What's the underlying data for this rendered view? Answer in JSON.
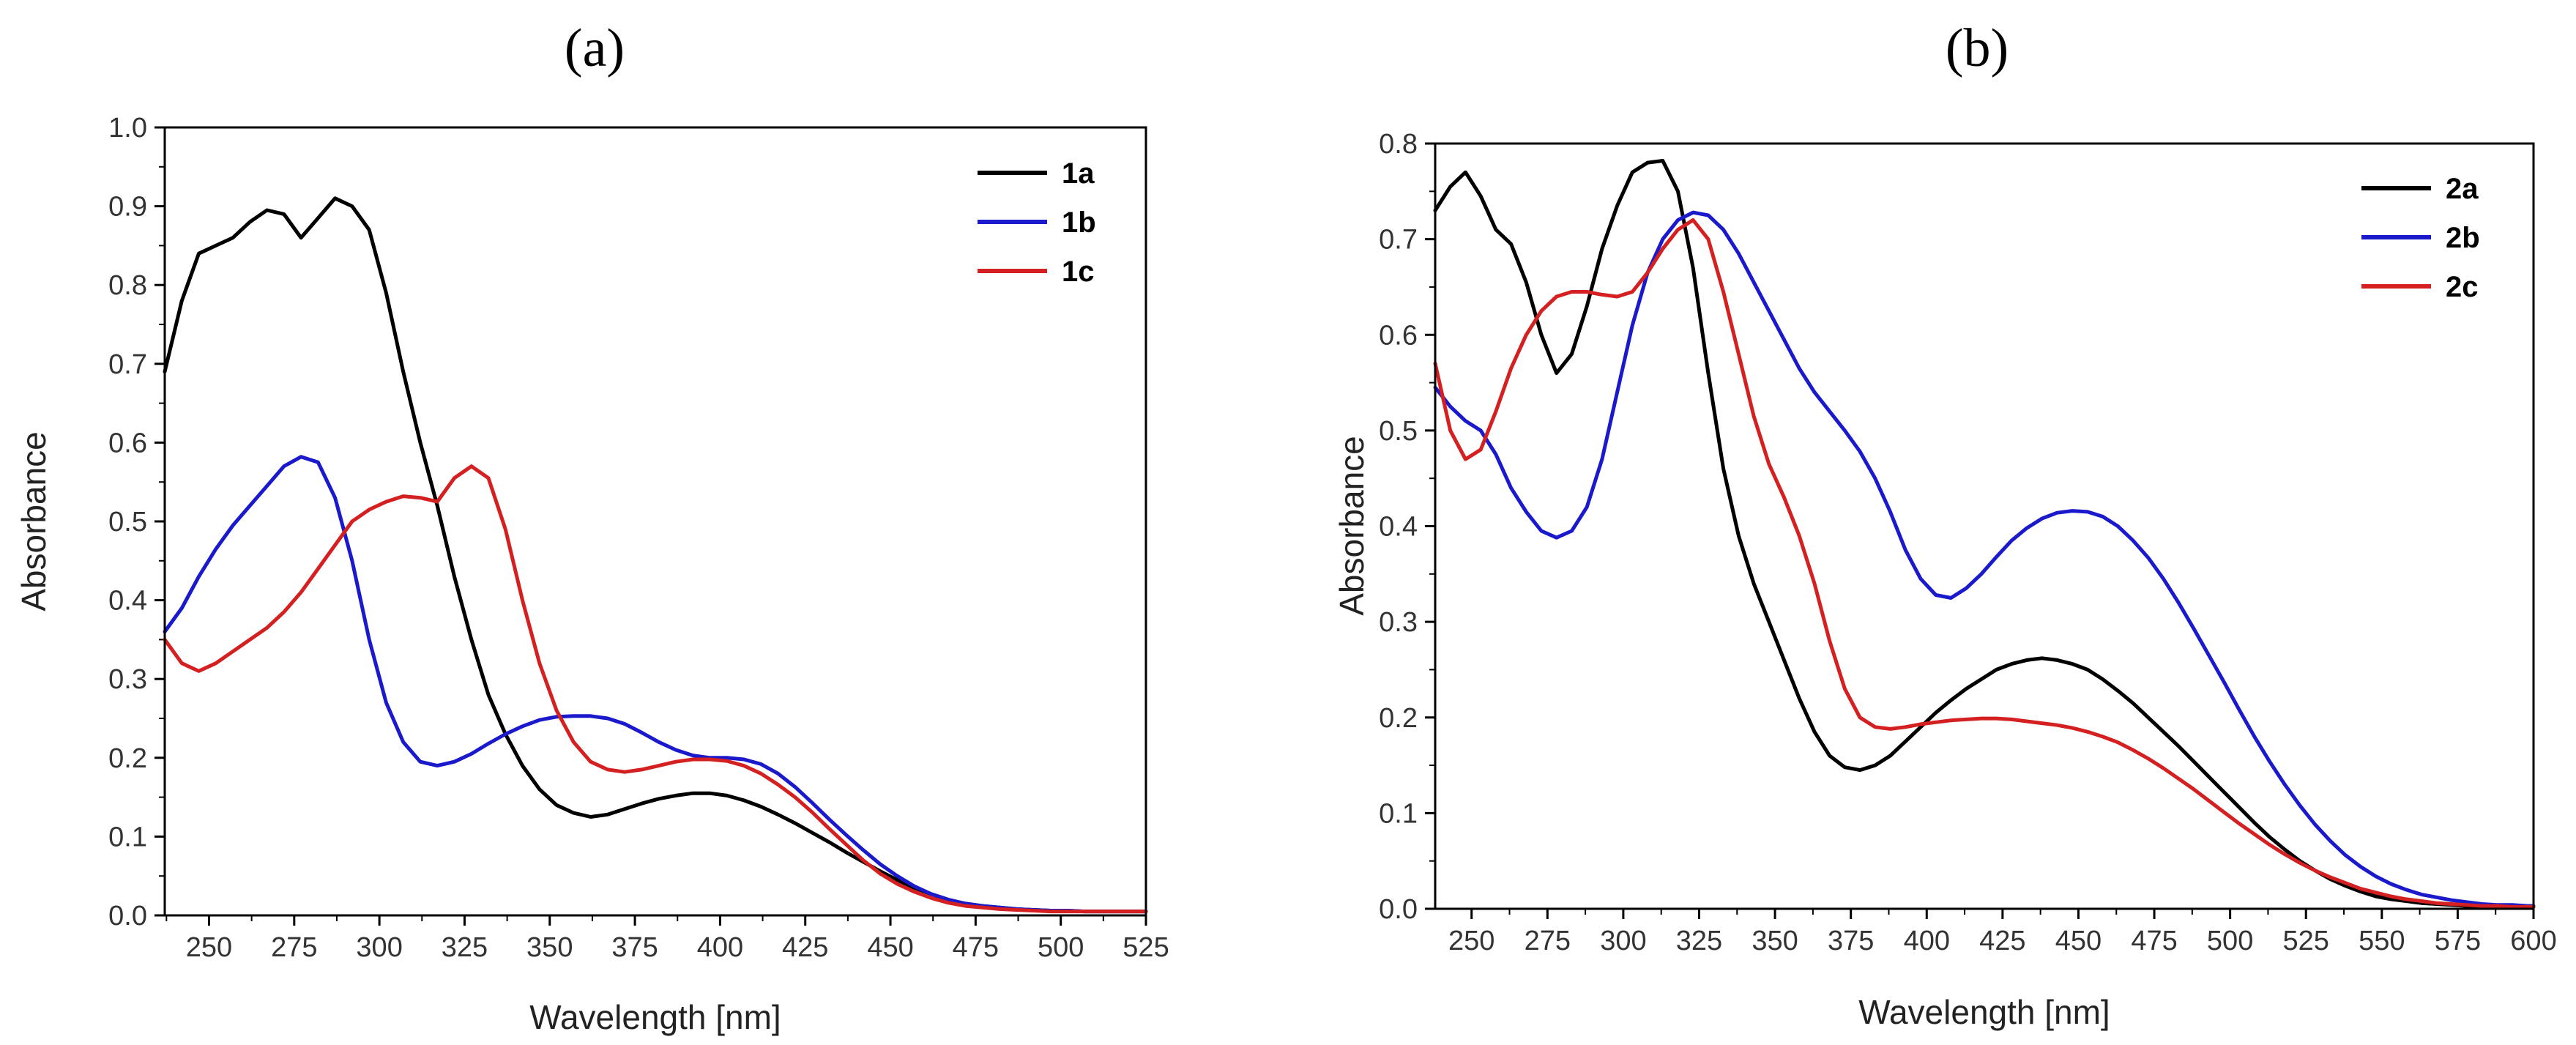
{
  "chart_data": [
    {
      "panel_label": "(a)",
      "type": "line",
      "title": "",
      "xlabel": "Wavelength [nm]",
      "ylabel": "Absorbance",
      "xlim": [
        237,
        525
      ],
      "ylim": [
        0,
        1.0
      ],
      "xticks": [
        250,
        275,
        300,
        325,
        350,
        375,
        400,
        425,
        450,
        475,
        500,
        525
      ],
      "yticks": [
        0.0,
        0.1,
        0.2,
        0.3,
        0.4,
        0.5,
        0.6,
        0.7,
        0.8,
        0.9,
        1.0
      ],
      "ytick_labels": [
        "0.0",
        "0.1",
        "0.2",
        "0.3",
        "0.4",
        "0.5",
        "0.6",
        "0.7",
        "0.8",
        "0.9",
        "1.0"
      ],
      "grid": false,
      "legend_position": "top-right",
      "series": [
        {
          "name": "1a",
          "color": "#000000",
          "x": [
            237,
            242,
            247,
            252,
            257,
            262,
            267,
            272,
            277,
            282,
            287,
            292,
            297,
            302,
            307,
            312,
            317,
            322,
            327,
            332,
            337,
            342,
            347,
            352,
            357,
            362,
            367,
            372,
            377,
            382,
            387,
            392,
            397,
            402,
            407,
            412,
            417,
            422,
            427,
            432,
            437,
            442,
            447,
            452,
            457,
            462,
            467,
            472,
            477,
            482,
            487,
            492,
            497,
            502,
            507,
            512,
            517,
            522,
            525
          ],
          "values": [
            0.69,
            0.78,
            0.84,
            0.85,
            0.86,
            0.88,
            0.895,
            0.89,
            0.86,
            0.885,
            0.91,
            0.9,
            0.87,
            0.79,
            0.69,
            0.6,
            0.52,
            0.43,
            0.35,
            0.28,
            0.23,
            0.19,
            0.16,
            0.14,
            0.13,
            0.125,
            0.128,
            0.135,
            0.142,
            0.148,
            0.152,
            0.155,
            0.155,
            0.152,
            0.146,
            0.138,
            0.128,
            0.117,
            0.105,
            0.093,
            0.08,
            0.068,
            0.056,
            0.045,
            0.035,
            0.027,
            0.02,
            0.015,
            0.012,
            0.01,
            0.008,
            0.007,
            0.006,
            0.006,
            0.005,
            0.005,
            0.005,
            0.005,
            0.005
          ]
        },
        {
          "name": "1b",
          "color": "#1a1acc",
          "x": [
            237,
            242,
            247,
            252,
            257,
            262,
            267,
            272,
            277,
            282,
            287,
            292,
            297,
            302,
            307,
            312,
            317,
            322,
            327,
            332,
            337,
            342,
            347,
            352,
            357,
            362,
            367,
            372,
            377,
            382,
            387,
            392,
            397,
            402,
            407,
            412,
            417,
            422,
            427,
            432,
            437,
            442,
            447,
            452,
            457,
            462,
            467,
            472,
            477,
            482,
            487,
            492,
            497,
            502,
            507,
            512,
            517,
            522,
            525
          ],
          "values": [
            0.36,
            0.39,
            0.43,
            0.465,
            0.495,
            0.52,
            0.545,
            0.57,
            0.582,
            0.575,
            0.53,
            0.45,
            0.35,
            0.27,
            0.22,
            0.195,
            0.19,
            0.195,
            0.205,
            0.218,
            0.23,
            0.24,
            0.248,
            0.252,
            0.253,
            0.253,
            0.25,
            0.243,
            0.232,
            0.22,
            0.21,
            0.203,
            0.2,
            0.2,
            0.198,
            0.192,
            0.18,
            0.163,
            0.143,
            0.122,
            0.102,
            0.083,
            0.065,
            0.05,
            0.037,
            0.027,
            0.02,
            0.015,
            0.012,
            0.01,
            0.008,
            0.007,
            0.006,
            0.006,
            0.005,
            0.005,
            0.005,
            0.005,
            0.005
          ]
        },
        {
          "name": "1c",
          "color": "#d42020",
          "x": [
            237,
            242,
            247,
            252,
            257,
            262,
            267,
            272,
            277,
            282,
            287,
            292,
            297,
            302,
            307,
            312,
            317,
            322,
            327,
            332,
            337,
            342,
            347,
            352,
            357,
            362,
            367,
            372,
            377,
            382,
            387,
            392,
            397,
            402,
            407,
            412,
            417,
            422,
            427,
            432,
            437,
            442,
            447,
            452,
            457,
            462,
            467,
            472,
            477,
            482,
            487,
            492,
            497,
            502,
            507,
            512,
            517,
            522,
            525
          ],
          "values": [
            0.35,
            0.32,
            0.31,
            0.32,
            0.335,
            0.35,
            0.365,
            0.385,
            0.41,
            0.44,
            0.47,
            0.5,
            0.515,
            0.525,
            0.532,
            0.53,
            0.525,
            0.555,
            0.57,
            0.555,
            0.49,
            0.4,
            0.32,
            0.26,
            0.22,
            0.195,
            0.185,
            0.182,
            0.185,
            0.19,
            0.195,
            0.198,
            0.198,
            0.196,
            0.19,
            0.18,
            0.166,
            0.15,
            0.131,
            0.11,
            0.09,
            0.07,
            0.053,
            0.04,
            0.03,
            0.022,
            0.016,
            0.012,
            0.01,
            0.008,
            0.007,
            0.006,
            0.005,
            0.005,
            0.005,
            0.005,
            0.005,
            0.005,
            0.005
          ]
        }
      ]
    },
    {
      "panel_label": "(b)",
      "type": "line",
      "title": "",
      "xlabel": "Wavelength [nm]",
      "ylabel": "Absorbance",
      "xlim": [
        238,
        600
      ],
      "ylim": [
        0,
        0.8
      ],
      "xticks": [
        250,
        275,
        300,
        325,
        350,
        375,
        400,
        425,
        450,
        475,
        500,
        525,
        550,
        575,
        600
      ],
      "yticks": [
        0.0,
        0.1,
        0.2,
        0.3,
        0.4,
        0.5,
        0.6,
        0.7,
        0.8
      ],
      "ytick_labels": [
        "0.0",
        "0.1",
        "0.2",
        "0.3",
        "0.4",
        "0.5",
        "0.6",
        "0.7",
        "0.8"
      ],
      "grid": false,
      "legend_position": "top-right",
      "series": [
        {
          "name": "2a",
          "color": "#000000",
          "x": [
            238,
            243,
            248,
            253,
            258,
            263,
            268,
            273,
            278,
            283,
            288,
            293,
            298,
            303,
            308,
            313,
            318,
            323,
            328,
            333,
            338,
            343,
            348,
            353,
            358,
            363,
            368,
            373,
            378,
            383,
            388,
            393,
            398,
            403,
            408,
            413,
            418,
            423,
            428,
            433,
            438,
            443,
            448,
            453,
            458,
            463,
            468,
            473,
            478,
            483,
            488,
            493,
            498,
            503,
            508,
            513,
            518,
            523,
            528,
            533,
            538,
            543,
            548,
            553,
            558,
            563,
            568,
            573,
            578,
            583,
            588,
            593,
            598,
            600
          ],
          "values": [
            0.73,
            0.755,
            0.77,
            0.745,
            0.71,
            0.695,
            0.655,
            0.6,
            0.56,
            0.58,
            0.63,
            0.69,
            0.735,
            0.77,
            0.78,
            0.782,
            0.75,
            0.67,
            0.56,
            0.46,
            0.39,
            0.34,
            0.3,
            0.26,
            0.22,
            0.185,
            0.16,
            0.148,
            0.145,
            0.15,
            0.16,
            0.175,
            0.19,
            0.205,
            0.218,
            0.23,
            0.24,
            0.25,
            0.256,
            0.26,
            0.262,
            0.26,
            0.256,
            0.25,
            0.24,
            0.228,
            0.215,
            0.2,
            0.185,
            0.17,
            0.154,
            0.138,
            0.122,
            0.106,
            0.09,
            0.075,
            0.062,
            0.05,
            0.04,
            0.031,
            0.024,
            0.018,
            0.013,
            0.01,
            0.008,
            0.006,
            0.005,
            0.004,
            0.003,
            0.003,
            0.002,
            0.002,
            0.002,
            0.002
          ]
        },
        {
          "name": "2b",
          "color": "#1a1acc",
          "x": [
            238,
            243,
            248,
            253,
            258,
            263,
            268,
            273,
            278,
            283,
            288,
            293,
            298,
            303,
            308,
            313,
            318,
            323,
            328,
            333,
            338,
            343,
            348,
            353,
            358,
            363,
            368,
            373,
            378,
            383,
            388,
            393,
            398,
            403,
            408,
            413,
            418,
            423,
            428,
            433,
            438,
            443,
            448,
            453,
            458,
            463,
            468,
            473,
            478,
            483,
            488,
            493,
            498,
            503,
            508,
            513,
            518,
            523,
            528,
            533,
            538,
            543,
            548,
            553,
            558,
            563,
            568,
            573,
            578,
            583,
            588,
            593,
            598,
            600
          ],
          "values": [
            0.545,
            0.525,
            0.51,
            0.5,
            0.475,
            0.44,
            0.415,
            0.395,
            0.388,
            0.395,
            0.42,
            0.47,
            0.54,
            0.61,
            0.665,
            0.7,
            0.72,
            0.728,
            0.725,
            0.71,
            0.685,
            0.655,
            0.625,
            0.595,
            0.565,
            0.54,
            0.52,
            0.5,
            0.478,
            0.45,
            0.415,
            0.375,
            0.345,
            0.328,
            0.325,
            0.335,
            0.35,
            0.368,
            0.385,
            0.398,
            0.408,
            0.414,
            0.416,
            0.415,
            0.41,
            0.4,
            0.385,
            0.367,
            0.345,
            0.32,
            0.293,
            0.265,
            0.237,
            0.208,
            0.18,
            0.154,
            0.13,
            0.108,
            0.088,
            0.071,
            0.056,
            0.044,
            0.034,
            0.026,
            0.02,
            0.015,
            0.012,
            0.009,
            0.007,
            0.005,
            0.004,
            0.004,
            0.003,
            0.003
          ]
        },
        {
          "name": "2c",
          "color": "#d42020",
          "x": [
            238,
            243,
            248,
            253,
            258,
            263,
            268,
            273,
            278,
            283,
            288,
            293,
            298,
            303,
            308,
            313,
            318,
            323,
            328,
            333,
            338,
            343,
            348,
            353,
            358,
            363,
            368,
            373,
            378,
            383,
            388,
            393,
            398,
            403,
            408,
            413,
            418,
            423,
            428,
            433,
            438,
            443,
            448,
            453,
            458,
            463,
            468,
            473,
            478,
            483,
            488,
            493,
            498,
            503,
            508,
            513,
            518,
            523,
            528,
            533,
            538,
            543,
            548,
            553,
            558,
            563,
            568,
            573,
            578,
            583,
            588,
            593,
            598,
            600
          ],
          "values": [
            0.57,
            0.5,
            0.47,
            0.48,
            0.52,
            0.565,
            0.6,
            0.625,
            0.64,
            0.645,
            0.645,
            0.642,
            0.64,
            0.645,
            0.665,
            0.69,
            0.71,
            0.72,
            0.7,
            0.645,
            0.58,
            0.515,
            0.465,
            0.43,
            0.39,
            0.34,
            0.28,
            0.23,
            0.2,
            0.19,
            0.188,
            0.19,
            0.193,
            0.195,
            0.197,
            0.198,
            0.199,
            0.199,
            0.198,
            0.196,
            0.194,
            0.192,
            0.189,
            0.185,
            0.18,
            0.174,
            0.166,
            0.157,
            0.147,
            0.136,
            0.125,
            0.113,
            0.101,
            0.089,
            0.078,
            0.067,
            0.057,
            0.048,
            0.04,
            0.033,
            0.027,
            0.021,
            0.017,
            0.013,
            0.01,
            0.008,
            0.006,
            0.005,
            0.004,
            0.003,
            0.003,
            0.002,
            0.002,
            0.002
          ]
        }
      ]
    }
  ]
}
